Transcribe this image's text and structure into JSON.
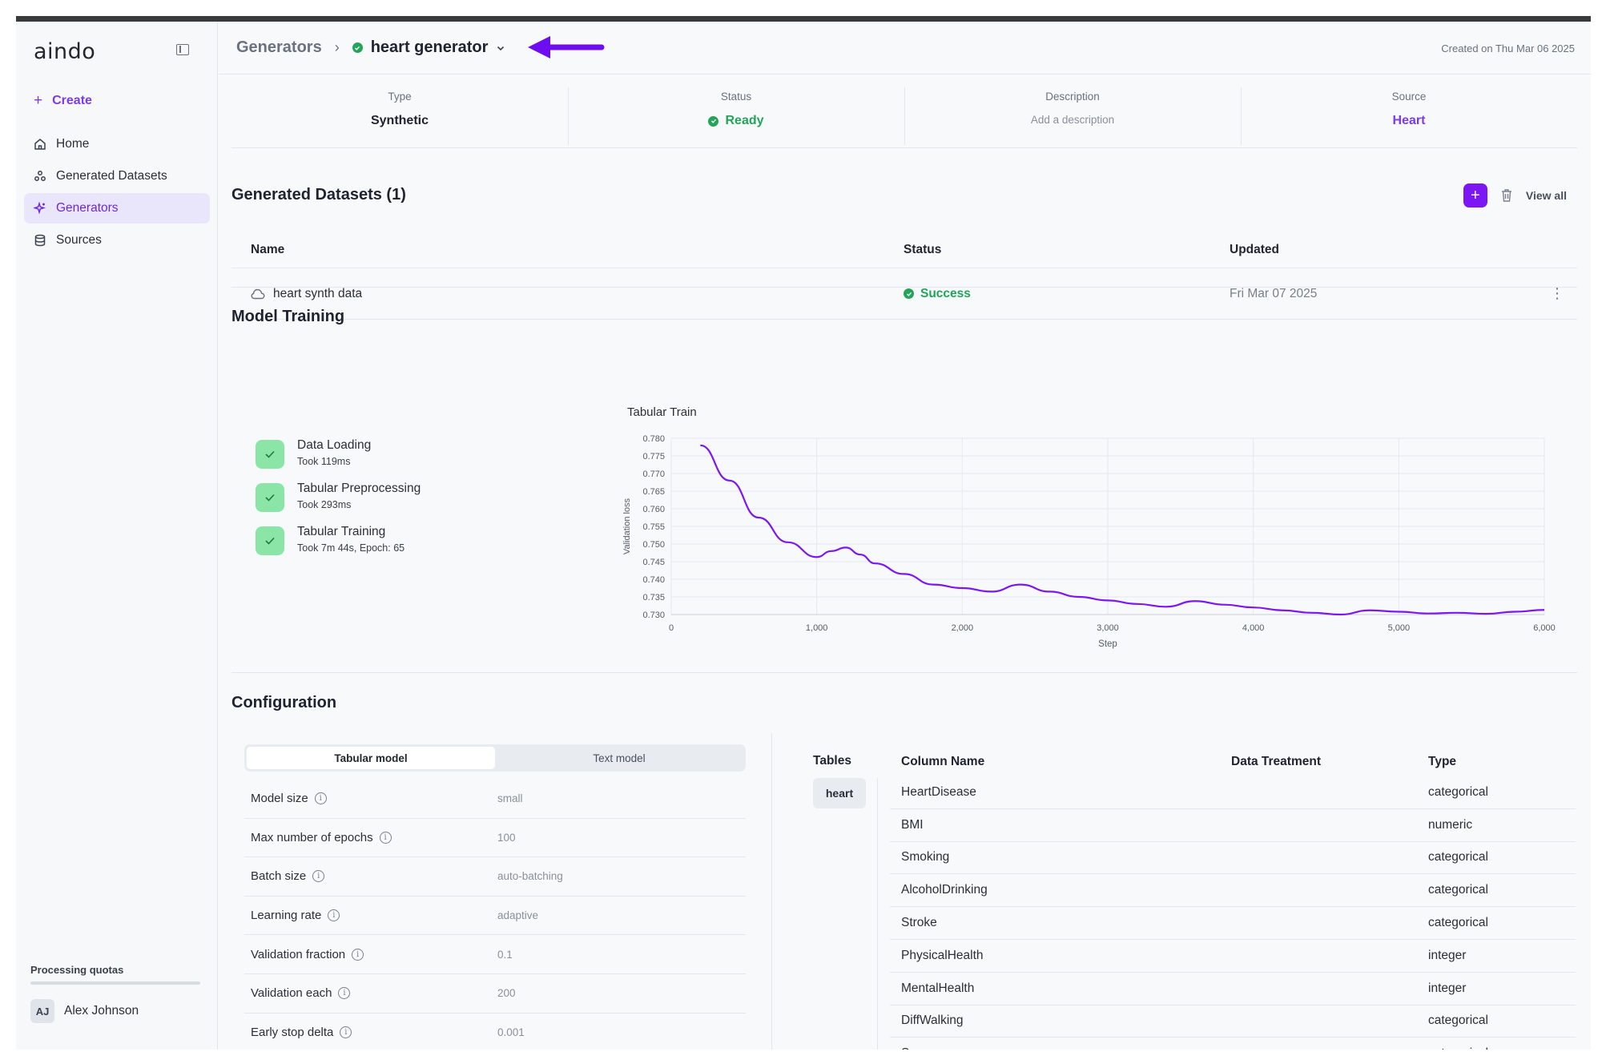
{
  "sidebar": {
    "logo": "aindo",
    "create_label": "Create",
    "nav": [
      {
        "label": "Home",
        "icon": "home-icon"
      },
      {
        "label": "Generated Datasets",
        "icon": "datasets-icon"
      },
      {
        "label": "Generators",
        "icon": "sparkle-icon",
        "active": true
      },
      {
        "label": "Sources",
        "icon": "database-icon"
      }
    ],
    "quota_label": "Processing quotas",
    "user": {
      "initials": "AJ",
      "name": "Alex Johnson"
    }
  },
  "header": {
    "breadcrumb_parent": "Generators",
    "current": "heart generator",
    "created": "Created on Thu Mar 06 2025"
  },
  "summary": [
    {
      "label": "Type",
      "value": "Synthetic"
    },
    {
      "label": "Status",
      "value": "Ready"
    },
    {
      "label": "Description",
      "value": "Add a description"
    },
    {
      "label": "Source",
      "value": "Heart"
    }
  ],
  "datasets": {
    "title": "Generated Datasets (1)",
    "view_all": "View all",
    "columns": [
      "Name",
      "Status",
      "Updated"
    ],
    "rows": [
      {
        "name": "heart synth data",
        "status": "Success",
        "updated": "Fri Mar 07 2025"
      }
    ]
  },
  "training": {
    "title": "Model Training",
    "steps": [
      {
        "title": "Data Loading",
        "sub": "Took 119ms"
      },
      {
        "title": "Tabular Preprocessing",
        "sub": "Took 293ms"
      },
      {
        "title": "Tabular Training",
        "sub": "Took 7m 44s, Epoch: 65"
      }
    ]
  },
  "chart_data": {
    "type": "line",
    "title": "Tabular Train",
    "xlabel": "Step",
    "ylabel": "Validation loss",
    "xlim": [
      0,
      6000
    ],
    "ylim": [
      0.73,
      0.78
    ],
    "xticks": [
      "0",
      "1,000",
      "2,000",
      "3,000",
      "4,000",
      "5,000",
      "6,000"
    ],
    "yticks": [
      "0.730",
      "0.735",
      "0.740",
      "0.745",
      "0.750",
      "0.755",
      "0.760",
      "0.765",
      "0.770",
      "0.775",
      "0.780"
    ],
    "series": [
      {
        "name": "Validation loss",
        "color": "#7c16f5",
        "x": [
          200,
          400,
          600,
          800,
          1000,
          1100,
          1200,
          1300,
          1400,
          1600,
          1800,
          2000,
          2200,
          2400,
          2600,
          2800,
          3000,
          3200,
          3400,
          3600,
          3800,
          4000,
          4200,
          4400,
          4600,
          4800,
          5000,
          5200,
          5400,
          5600,
          5800,
          6000
        ],
        "y": [
          0.778,
          0.768,
          0.7575,
          0.7505,
          0.7463,
          0.748,
          0.749,
          0.747,
          0.7445,
          0.7415,
          0.7385,
          0.7375,
          0.7365,
          0.7385,
          0.7365,
          0.735,
          0.734,
          0.733,
          0.7322,
          0.7338,
          0.7328,
          0.732,
          0.7312,
          0.7305,
          0.73,
          0.7312,
          0.7308,
          0.7303,
          0.7305,
          0.7302,
          0.7308,
          0.7313
        ]
      }
    ]
  },
  "config": {
    "title": "Configuration",
    "tabs": [
      "Tabular model",
      "Text model"
    ],
    "params": [
      {
        "label": "Model size",
        "value": "small"
      },
      {
        "label": "Max number of epochs",
        "value": "100"
      },
      {
        "label": "Batch size",
        "value": "auto-batching"
      },
      {
        "label": "Learning rate",
        "value": "adaptive"
      },
      {
        "label": "Validation fraction",
        "value": "0.1"
      },
      {
        "label": "Validation each",
        "value": "200"
      },
      {
        "label": "Early stop delta",
        "value": "0.001"
      }
    ],
    "tables_label": "Tables",
    "table_name": "heart",
    "col_headers": [
      "Column Name",
      "Data Treatment",
      "Type"
    ],
    "columns": [
      {
        "name": "HeartDisease",
        "treatment": "",
        "type": "categorical"
      },
      {
        "name": "BMI",
        "treatment": "",
        "type": "numeric"
      },
      {
        "name": "Smoking",
        "treatment": "",
        "type": "categorical"
      },
      {
        "name": "AlcoholDrinking",
        "treatment": "",
        "type": "categorical"
      },
      {
        "name": "Stroke",
        "treatment": "",
        "type": "categorical"
      },
      {
        "name": "PhysicalHealth",
        "treatment": "",
        "type": "integer"
      },
      {
        "name": "MentalHealth",
        "treatment": "",
        "type": "integer"
      },
      {
        "name": "DiffWalking",
        "treatment": "",
        "type": "categorical"
      },
      {
        "name": "Sex",
        "treatment": "",
        "type": "categorical"
      }
    ]
  }
}
